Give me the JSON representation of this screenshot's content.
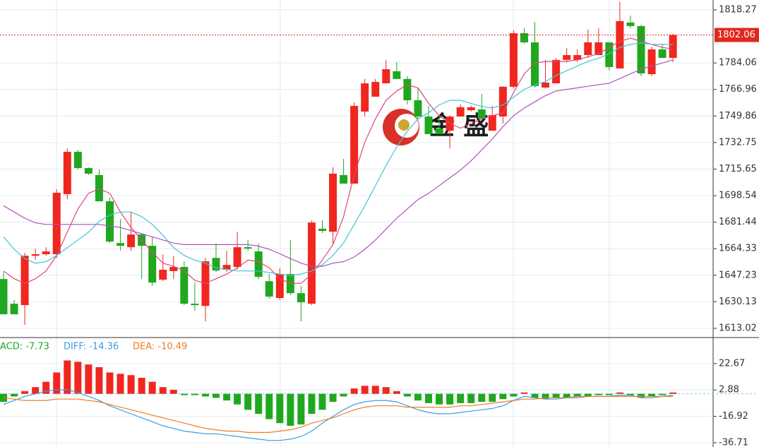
{
  "watermark": "金 盛",
  "chart_data": [
    {
      "type": "candlestick",
      "up_color": "#f0271f",
      "down_color": "#1fa81f",
      "open": [
        1644.8,
        1628.9,
        1628.0,
        1659.8,
        1660.8,
        1660.8,
        1699.5,
        1726.8,
        1716.3,
        1711.8,
        1694.9,
        1668.0,
        1665.3,
        1673.5,
        1666.2,
        1644.4,
        1649.9,
        1652.6,
        1628.9,
        1627.5,
        1658.4,
        1650.8,
        1652.6,
        1665.3,
        1662.6,
        1643.4,
        1632.6,
        1648.0,
        1635.7,
        1628.9,
        1677.2,
        1675.3,
        1711.8,
        1706.3,
        1752.7,
        1762.3,
        1770.9,
        1778.7,
        1773.7,
        1760.0,
        1749.5,
        1741.8,
        1740.4,
        1749.5,
        1753.6,
        1754.1,
        1740.4,
        1749.5,
        1768.7,
        1803.2,
        1797.3,
        1768.2,
        1770.9,
        1786.0,
        1786.0,
        1789.1,
        1789.1,
        1797.3,
        1780.5,
        1810.1,
        1807.8,
        1776.8,
        1792.8,
        1787.3
      ],
      "high": [
        1649.4,
        1631.3,
        1661.7,
        1664.4,
        1665.3,
        1702.7,
        1729.0,
        1728.1,
        1716.8,
        1715.4,
        1697.2,
        1683.5,
        1688.1,
        1674.4,
        1672.1,
        1660.8,
        1659.8,
        1656.2,
        1642.5,
        1658.4,
        1667.6,
        1663.0,
        1675.3,
        1669.9,
        1667.6,
        1648.0,
        1651.7,
        1669.9,
        1640.3,
        1682.6,
        1682.6,
        1716.8,
        1722.2,
        1758.6,
        1773.7,
        1773.7,
        1786.0,
        1784.6,
        1775.5,
        1767.7,
        1756.4,
        1749.5,
        1750.4,
        1757.3,
        1756.4,
        1764.1,
        1756.4,
        1769.1,
        1805.1,
        1806.4,
        1810.5,
        1786.0,
        1787.3,
        1793.7,
        1792.8,
        1805.5,
        1806.4,
        1797.3,
        1823.3,
        1814.6,
        1808.7,
        1794.6,
        1796.4,
        1802.8
      ],
      "low": [
        1622.1,
        1622.1,
        1615.2,
        1657.1,
        1659.8,
        1658.4,
        1696.3,
        1715.4,
        1711.8,
        1694.9,
        1668.0,
        1663.0,
        1663.0,
        1644.8,
        1640.3,
        1643.4,
        1644.8,
        1628.0,
        1624.4,
        1617.5,
        1649.4,
        1649.4,
        1650.8,
        1663.0,
        1644.8,
        1632.2,
        1631.3,
        1634.4,
        1617.5,
        1628.0,
        1674.4,
        1667.6,
        1706.3,
        1706.3,
        1749.5,
        1762.3,
        1770.9,
        1773.7,
        1757.3,
        1748.2,
        1738.2,
        1738.2,
        1729.0,
        1749.5,
        1752.7,
        1748.2,
        1740.4,
        1745.0,
        1767.7,
        1796.4,
        1768.2,
        1767.7,
        1770.9,
        1784.6,
        1784.6,
        1787.3,
        1789.1,
        1779.1,
        1780.5,
        1806.4,
        1775.5,
        1775.5,
        1787.3,
        1784.6
      ],
      "close": [
        1622.1,
        1622.1,
        1659.8,
        1660.8,
        1662.6,
        1700.4,
        1726.8,
        1716.3,
        1712.7,
        1694.9,
        1668.9,
        1666.2,
        1673.5,
        1666.2,
        1642.5,
        1650.8,
        1652.6,
        1628.9,
        1628.0,
        1656.2,
        1650.3,
        1653.9,
        1665.3,
        1664.4,
        1646.2,
        1633.5,
        1648.0,
        1635.7,
        1629.8,
        1681.2,
        1675.8,
        1712.7,
        1706.3,
        1756.4,
        1770.9,
        1771.8,
        1780.0,
        1773.7,
        1760.0,
        1749.5,
        1738.2,
        1738.2,
        1749.5,
        1755.5,
        1755.5,
        1748.2,
        1750.4,
        1768.7,
        1803.2,
        1797.3,
        1769.1,
        1771.4,
        1786.0,
        1789.1,
        1789.1,
        1797.3,
        1797.3,
        1781.4,
        1811.0,
        1807.8,
        1777.3,
        1792.8,
        1787.3,
        1802.06
      ],
      "series": [
        {
          "color": "#e0457b",
          "values": [
            1650,
            1645,
            1642,
            1645,
            1650,
            1660,
            1675,
            1690,
            1700,
            1703,
            1700,
            1688,
            1678,
            1670,
            1662,
            1655,
            1653,
            1650,
            1644,
            1642,
            1645,
            1648,
            1652,
            1657,
            1656,
            1652,
            1645,
            1642,
            1642,
            1648,
            1657,
            1667,
            1685,
            1712,
            1733,
            1748,
            1760,
            1766,
            1770,
            1768,
            1758,
            1750,
            1745,
            1742,
            1745,
            1748,
            1750,
            1752,
            1765,
            1777,
            1784,
            1785,
            1785,
            1785,
            1786,
            1788,
            1790,
            1794,
            1798,
            1800,
            1798,
            1796,
            1794,
            1793
          ]
        },
        {
          "color": "#41c5d8",
          "values": [
            1672,
            1664,
            1658,
            1655,
            1656,
            1660,
            1665,
            1670,
            1675,
            1682,
            1686,
            1688,
            1688,
            1685,
            1680,
            1673,
            1665,
            1660,
            1657,
            1655,
            1652,
            1651,
            1650,
            1650,
            1650,
            1649,
            1648,
            1647,
            1648,
            1650,
            1654,
            1660,
            1668,
            1680,
            1692,
            1705,
            1718,
            1730,
            1740,
            1748,
            1752,
            1757,
            1760,
            1760,
            1758,
            1756,
            1755,
            1757,
            1762,
            1767,
            1770,
            1772,
            1776,
            1779,
            1782,
            1785,
            1787,
            1790,
            1794,
            1796,
            1797,
            1796,
            1796,
            1796
          ]
        },
        {
          "color": "#b050c0",
          "values": [
            1692,
            1688,
            1684,
            1681,
            1680,
            1680,
            1680,
            1680,
            1680,
            1680,
            1679,
            1678,
            1676,
            1674,
            1672,
            1670,
            1668,
            1667,
            1667,
            1667,
            1667,
            1667,
            1667,
            1667,
            1666,
            1664,
            1661,
            1658,
            1655,
            1653,
            1653,
            1655,
            1656,
            1659,
            1664,
            1670,
            1677,
            1684,
            1690,
            1696,
            1700,
            1705,
            1710,
            1715,
            1721,
            1728,
            1735,
            1743,
            1750,
            1755,
            1759,
            1763,
            1766,
            1767,
            1768,
            1769,
            1770,
            1771,
            1774,
            1777,
            1780,
            1782,
            1784,
            1786
          ]
        }
      ],
      "last_price": 1802.06,
      "ylim": [
        1607.1,
        1824.6
      ],
      "yticks": [
        1818.27,
        1784.06,
        1766.96,
        1749.86,
        1732.75,
        1715.65,
        1698.54,
        1681.44,
        1664.33,
        1647.23,
        1630.13,
        1613.02
      ],
      "grid": true
    },
    {
      "type": "macd",
      "histogram_label": "ACD: -7.73",
      "values": [
        -6,
        -2,
        2,
        5,
        9,
        16,
        25,
        24,
        22,
        20,
        16,
        15,
        14,
        12,
        9,
        5,
        3,
        -1,
        -1,
        -2,
        -3,
        -5,
        -8,
        -12,
        -15,
        -19,
        -22,
        -24,
        -23,
        -15,
        -12,
        -6,
        -2,
        4,
        6,
        6,
        5,
        2,
        -2,
        -5,
        -7,
        -8,
        -8,
        -7,
        -7,
        -6,
        -6,
        -4,
        -2,
        1,
        -3,
        -4,
        -3,
        -3,
        -2,
        -2,
        -1,
        -1,
        1,
        -1,
        -3,
        -2,
        -1,
        1
      ],
      "up_color": "#f0271f",
      "down_color": "#1fa81f",
      "series": [
        {
          "name": "DIFF: -14.36",
          "color": "#3b9de0",
          "values": [
            -8,
            -5,
            -2,
            0,
            2,
            3,
            3,
            1,
            -2,
            -5,
            -9,
            -12,
            -15,
            -18,
            -21,
            -24,
            -26,
            -28,
            -29,
            -30,
            -30,
            -31,
            -32,
            -33,
            -34,
            -35,
            -35,
            -34,
            -32,
            -28,
            -22,
            -17,
            -12,
            -8,
            -6,
            -5,
            -5,
            -6,
            -9,
            -12,
            -14,
            -15,
            -15,
            -14,
            -13,
            -12,
            -11,
            -9,
            -5,
            -2,
            -3,
            -4,
            -4,
            -3,
            -3,
            -2,
            -2,
            -2,
            -1,
            -1,
            -3,
            -3,
            -2,
            -1
          ]
        },
        {
          "name": "DEA: -10.49",
          "color": "#ef7d22",
          "values": [
            -3,
            -4,
            -5,
            -5,
            -5,
            -4,
            -4,
            -4,
            -5,
            -6,
            -8,
            -10,
            -12,
            -14,
            -16,
            -18,
            -20,
            -22,
            -24,
            -26,
            -27,
            -28,
            -28,
            -29,
            -29,
            -29,
            -28,
            -27,
            -25,
            -22,
            -20,
            -18,
            -15,
            -12,
            -10,
            -9,
            -9,
            -9,
            -10,
            -10,
            -10,
            -10,
            -10,
            -9,
            -9,
            -8,
            -7,
            -6,
            -5,
            -4,
            -4,
            -3,
            -3,
            -3,
            -2,
            -2,
            -2,
            -2,
            -2,
            -2,
            -2,
            -2,
            -2,
            -2
          ]
        }
      ],
      "ylim": [
        -39.9,
        42.2
      ],
      "yticks": [
        22.67,
        2.88,
        -16.92,
        -36.71
      ],
      "grid": true
    }
  ]
}
